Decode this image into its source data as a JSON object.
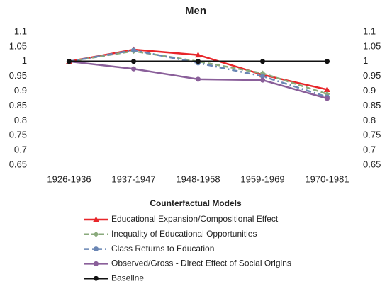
{
  "chart_data": {
    "type": "line",
    "title": "Men",
    "categories": [
      "1926-1936",
      "1937-1947",
      "1948-1958",
      "1959-1969",
      "1970-1981"
    ],
    "series": [
      {
        "name": "Educational Expansion/Compositional Effect",
        "color": "#e8262a",
        "marker": "triangle",
        "line_style": "solid",
        "values": [
          1,
          1.04,
          1.022,
          0.955,
          0.905
        ]
      },
      {
        "name": "Inequality of Educational Opportunities",
        "color": "#8aaa7c",
        "marker": "diamond",
        "line_style": "dashed",
        "values": [
          1,
          1.035,
          1.0,
          0.96,
          0.89
        ]
      },
      {
        "name": "Class Returns to Education",
        "color": "#6a86b4",
        "marker": "circle",
        "line_style": "dashdot",
        "values": [
          1,
          1.038,
          0.995,
          0.95,
          0.88
        ]
      },
      {
        "name": "Observed/Gross - Direct Effect of Social Origins",
        "color": "#8a5f9a",
        "marker": "circle",
        "line_style": "solid",
        "values": [
          1,
          0.975,
          0.94,
          0.937,
          0.875
        ]
      },
      {
        "name": "Baseline",
        "color": "#111111",
        "marker": "circle",
        "line_style": "solid",
        "values": [
          1,
          1,
          1,
          1,
          1
        ]
      }
    ],
    "ylim": [
      0.65,
      1.1
    ],
    "yticks": [
      0.65,
      0.7,
      0.75,
      0.8,
      0.85,
      0.9,
      0.95,
      1,
      1.05,
      1.1
    ],
    "y2lim": [
      0.65,
      1.1
    ],
    "y2ticks": [
      0.65,
      0.7,
      0.75,
      0.8,
      0.85,
      0.9,
      0.95,
      1,
      1.05,
      1.1
    ],
    "grid": false,
    "legend_title": "Counterfactual Models",
    "legend_position": "bottom"
  }
}
